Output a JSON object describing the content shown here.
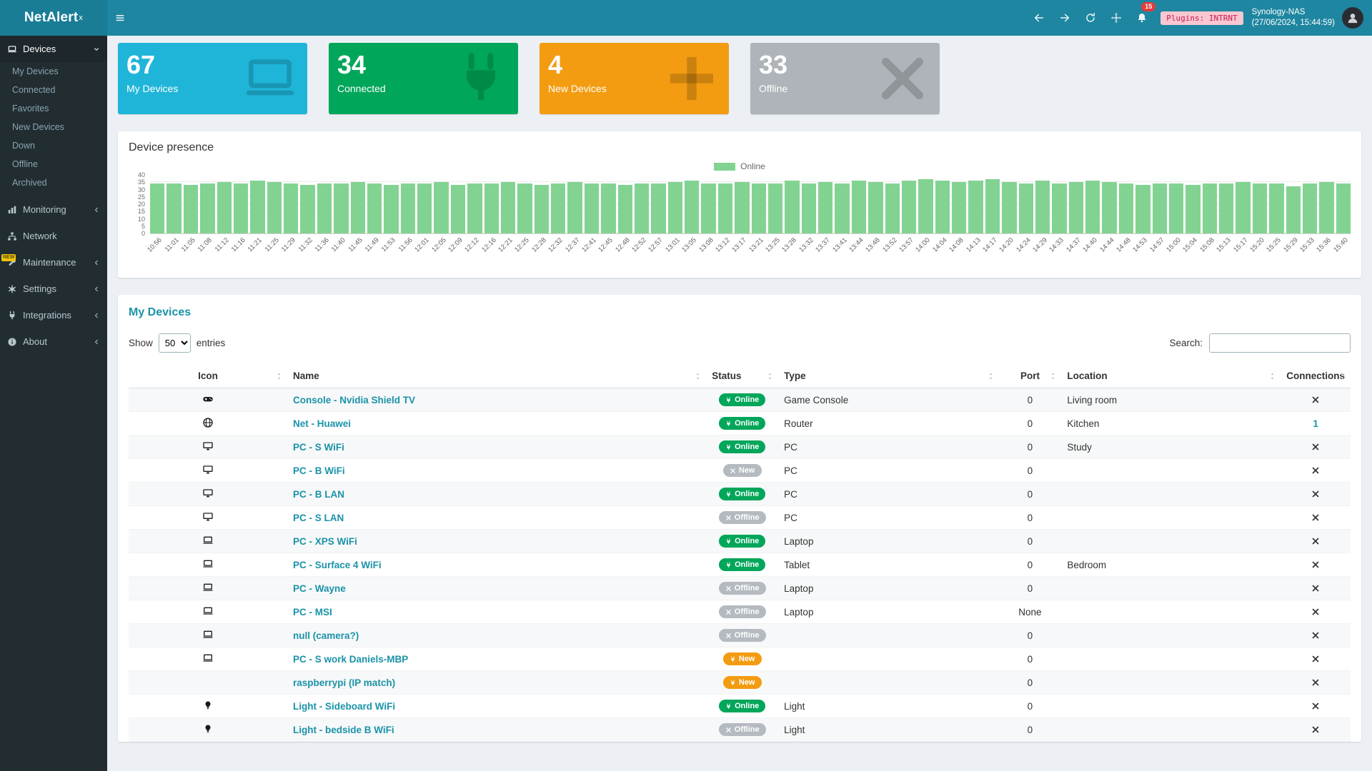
{
  "topbar": {
    "logo": "NetAlert",
    "logo_sup": "x",
    "notification_count": "15",
    "plugins_badge": "Plugins: INTRNT",
    "host": "Synology-NAS",
    "timestamp": "(27/06/2024, 15:44:59)"
  },
  "sidebar": {
    "items": [
      {
        "label": "Devices",
        "icon": "laptop",
        "chevron": "down",
        "active": true,
        "submenu": [
          "My Devices",
          "Connected",
          "Favorites",
          "New Devices",
          "Down",
          "Offline",
          "Archived"
        ]
      },
      {
        "label": "Monitoring",
        "icon": "chart",
        "chevron": "left"
      },
      {
        "label": "Network",
        "icon": "network",
        "chevron": "none"
      },
      {
        "label": "Maintenance",
        "icon": "wrench",
        "chevron": "left",
        "badge": "NEW"
      },
      {
        "label": "Settings",
        "icon": "gear",
        "chevron": "left"
      },
      {
        "label": "Integrations",
        "icon": "plug",
        "chevron": "left"
      },
      {
        "label": "About",
        "icon": "info",
        "chevron": "left"
      }
    ]
  },
  "page": {
    "title": "Devices"
  },
  "cards": [
    {
      "value": "67",
      "label": "My Devices",
      "icon": "laptop",
      "color": "#1fb5d8"
    },
    {
      "value": "34",
      "label": "Connected",
      "icon": "plug",
      "color": "#00a65a"
    },
    {
      "value": "4",
      "label": "New Devices",
      "icon": "plus",
      "color": "#f39c12"
    },
    {
      "value": "33",
      "label": "Offline",
      "icon": "x",
      "color": "#aeb4b9"
    }
  ],
  "chart_data": {
    "type": "bar",
    "title": "Device presence",
    "legend": [
      {
        "label": "Online",
        "color": "#82d392"
      }
    ],
    "ylim": [
      0,
      40
    ],
    "yticks": [
      0,
      5,
      10,
      15,
      20,
      25,
      30,
      35,
      40
    ],
    "x": [
      "10:56",
      "11:01",
      "11:05",
      "11:08",
      "11:12",
      "11:16",
      "11:21",
      "11:25",
      "11:29",
      "11:32",
      "11:36",
      "11:40",
      "11:45",
      "11:49",
      "11:53",
      "11:56",
      "12:01",
      "12:05",
      "12:09",
      "12:12",
      "12:16",
      "12:21",
      "12:25",
      "12:28",
      "12:32",
      "12:37",
      "12:41",
      "12:45",
      "12:48",
      "12:52",
      "12:57",
      "13:01",
      "13:05",
      "13:08",
      "13:12",
      "13:17",
      "13:21",
      "13:25",
      "13:28",
      "13:32",
      "13:37",
      "13:41",
      "13:44",
      "13:48",
      "13:52",
      "13:57",
      "14:00",
      "14:04",
      "14:08",
      "14:13",
      "14:17",
      "14:20",
      "14:24",
      "14:29",
      "14:33",
      "14:37",
      "14:40",
      "14:44",
      "14:48",
      "14:53",
      "14:57",
      "15:00",
      "15:04",
      "15:08",
      "15:13",
      "15:17",
      "15:20",
      "15:25",
      "15:29",
      "15:33",
      "15:36",
      "15:40"
    ],
    "series": [
      {
        "name": "Online",
        "color": "#82d392",
        "values": [
          34,
          34,
          33,
          34,
          35,
          34,
          36,
          35,
          34,
          33,
          34,
          34,
          35,
          34,
          33,
          34,
          34,
          35,
          33,
          34,
          34,
          35,
          34,
          33,
          34,
          35,
          34,
          34,
          33,
          34,
          34,
          35,
          36,
          34,
          34,
          35,
          34,
          34,
          36,
          34,
          35,
          34,
          36,
          35,
          34,
          36,
          37,
          36,
          35,
          36,
          37,
          35,
          34,
          36,
          34,
          35,
          36,
          35,
          34,
          33,
          34,
          34,
          33,
          34,
          34,
          35,
          34,
          34,
          32,
          34,
          35,
          34
        ]
      }
    ]
  },
  "devices_panel": {
    "title": "My Devices",
    "show_label": "Show",
    "entries_label": "entries",
    "search_label": "Search:",
    "page_length_options": [
      "50"
    ],
    "page_length": "50",
    "columns": [
      "Icon",
      "Name",
      "Status",
      "Type",
      "Port",
      "Location",
      "Connections"
    ],
    "rows": [
      {
        "icon": "gamepad",
        "name": "Console - Nvidia Shield TV",
        "status": "online",
        "status_label": "Online",
        "type": "Game Console",
        "port": "0",
        "location": "Living room",
        "connections": "x"
      },
      {
        "icon": "globe",
        "name": "Net - Huawei",
        "status": "online",
        "status_label": "Online",
        "type": "Router",
        "port": "0",
        "location": "Kitchen",
        "connections": "1"
      },
      {
        "icon": "desktop",
        "name": "PC - S WiFi",
        "status": "online",
        "status_label": "Online",
        "type": "PC",
        "port": "0",
        "location": "Study",
        "connections": "x"
      },
      {
        "icon": "desktop",
        "name": "PC - B WiFi",
        "status": "new_gray",
        "status_label": "New",
        "type": "PC",
        "port": "0",
        "location": "",
        "connections": "x"
      },
      {
        "icon": "desktop",
        "name": "PC - B LAN",
        "status": "online",
        "status_label": "Online",
        "type": "PC",
        "port": "0",
        "location": "",
        "connections": "x"
      },
      {
        "icon": "desktop",
        "name": "PC - S LAN",
        "status": "offline",
        "status_label": "Offline",
        "type": "PC",
        "port": "0",
        "location": "",
        "connections": "x"
      },
      {
        "icon": "laptop",
        "name": "PC - XPS WiFi",
        "status": "online",
        "status_label": "Online",
        "type": "Laptop",
        "port": "0",
        "location": "",
        "connections": "x"
      },
      {
        "icon": "laptop",
        "name": "PC - Surface 4 WiFi",
        "status": "online",
        "status_label": "Online",
        "type": "Tablet",
        "port": "0",
        "location": "Bedroom",
        "connections": "x"
      },
      {
        "icon": "laptop",
        "name": "PC - Wayne",
        "status": "offline",
        "status_label": "Offline",
        "type": "Laptop",
        "port": "0",
        "location": "",
        "connections": "x"
      },
      {
        "icon": "laptop",
        "name": "PC - MSI",
        "status": "offline",
        "status_label": "Offline",
        "type": "Laptop",
        "port": "None",
        "location": "",
        "connections": "x"
      },
      {
        "icon": "laptop",
        "name": "null (camera?)",
        "status": "offline",
        "status_label": "Offline",
        "type": "",
        "port": "0",
        "location": "",
        "connections": "x"
      },
      {
        "icon": "laptop",
        "name": "PC - S work Daniels-MBP",
        "status": "new",
        "status_label": "New",
        "type": "",
        "port": "0",
        "location": "",
        "connections": "x"
      },
      {
        "icon": "",
        "name": "raspberrypi (IP match)",
        "status": "new",
        "status_label": "New",
        "type": "",
        "port": "0",
        "location": "",
        "connections": "x"
      },
      {
        "icon": "lightbulb",
        "name": "Light - Sideboard WiFi",
        "status": "online",
        "status_label": "Online",
        "type": "Light",
        "port": "0",
        "location": "",
        "connections": "x"
      },
      {
        "icon": "lightbulb",
        "name": "Light - bedside B WiFi",
        "status": "offline",
        "status_label": "Offline",
        "type": "Light",
        "port": "0",
        "location": "",
        "connections": "x"
      }
    ]
  }
}
